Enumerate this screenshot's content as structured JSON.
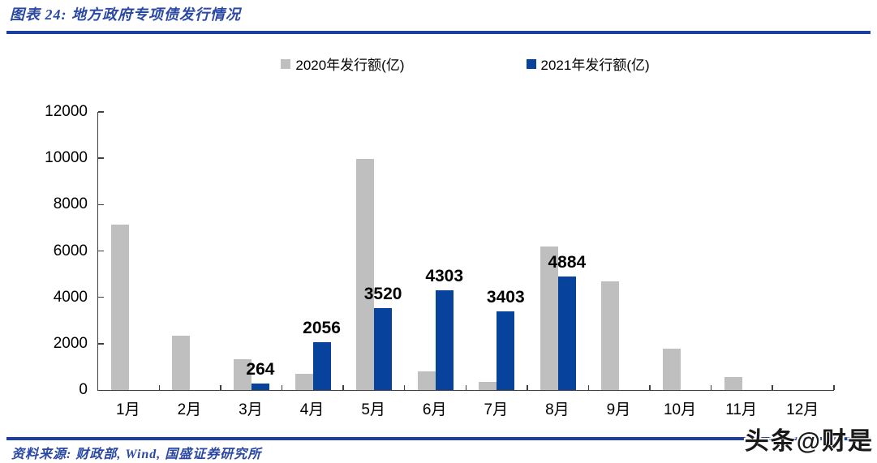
{
  "header": {
    "title": "图表 24:  地方政府专项债发行情况"
  },
  "footer": {
    "source": "资料来源: 财政部, Wind, 国盛证券研究所",
    "watermark": "头条@财是"
  },
  "colors": {
    "series_2020": "#BFBFBF",
    "series_2021": "#07429C",
    "rule_blue": "#1A3FA0",
    "title_blue": "#2A48A4",
    "axis": "#404040"
  },
  "chart_data": {
    "type": "bar",
    "title": "地方政府专项债发行情况",
    "categories": [
      "1月",
      "2月",
      "3月",
      "4月",
      "5月",
      "6月",
      "7月",
      "8月",
      "9月",
      "10月",
      "11月",
      "12月"
    ],
    "series": [
      {
        "name": "2020年发行额(亿)",
        "color": "#BFBFBF",
        "values": [
          7150,
          2350,
          1340,
          700,
          9980,
          800,
          350,
          6200,
          4700,
          1800,
          550,
          0
        ]
      },
      {
        "name": "2021年发行额(亿)",
        "color": "#07429C",
        "values": [
          0,
          0,
          264,
          2056,
          3520,
          4303,
          3403,
          4884,
          0,
          0,
          0,
          0
        ],
        "data_labels": [
          null,
          null,
          "264",
          "2056",
          "3520",
          "4303",
          "3403",
          "4884",
          null,
          null,
          null,
          null
        ]
      }
    ],
    "xlabel": "",
    "ylabel": "",
    "ylim": [
      0,
      12000
    ],
    "ytick_step": 2000,
    "grid": false,
    "legend_position": "top"
  }
}
